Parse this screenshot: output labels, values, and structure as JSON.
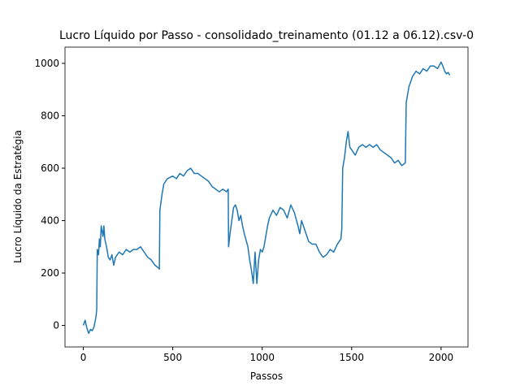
{
  "chart_data": {
    "type": "line",
    "title": "Lucro Líquido por Passo - consolidado_treinamento (01.12 a 06.12).csv-0",
    "x_label": "Passos",
    "y_label": "Lucro Líquido da Estratégia",
    "x": [
      0,
      10,
      20,
      30,
      40,
      50,
      60,
      70,
      75,
      78,
      85,
      90,
      95,
      100,
      110,
      115,
      120,
      130,
      140,
      150,
      160,
      170,
      180,
      200,
      220,
      240,
      260,
      280,
      300,
      320,
      340,
      360,
      380,
      400,
      420,
      425,
      428,
      440,
      450,
      470,
      500,
      520,
      540,
      560,
      580,
      600,
      620,
      640,
      660,
      680,
      700,
      720,
      740,
      760,
      780,
      800,
      810,
      812,
      820,
      830,
      840,
      850,
      860,
      870,
      880,
      890,
      900,
      920,
      930,
      940,
      950,
      960,
      970,
      980,
      990,
      1000,
      1010,
      1020,
      1030,
      1040,
      1060,
      1080,
      1100,
      1120,
      1140,
      1160,
      1180,
      1200,
      1210,
      1220,
      1240,
      1260,
      1280,
      1300,
      1320,
      1340,
      1360,
      1380,
      1400,
      1420,
      1440,
      1445,
      1450,
      1460,
      1470,
      1480,
      1490,
      1500,
      1520,
      1540,
      1560,
      1580,
      1600,
      1620,
      1640,
      1660,
      1680,
      1700,
      1720,
      1740,
      1760,
      1780,
      1800,
      1805,
      1820,
      1840,
      1860,
      1880,
      1900,
      1920,
      1940,
      1960,
      1980,
      2000,
      2010,
      2020,
      2030,
      2040,
      2048
    ],
    "series": [
      {
        "name": "Lucro Líquido",
        "color": "#1f77b4",
        "values": [
          0,
          20,
          -10,
          -30,
          -15,
          -20,
          -5,
          30,
          60,
          290,
          270,
          330,
          300,
          380,
          340,
          380,
          330,
          300,
          260,
          250,
          270,
          230,
          260,
          280,
          270,
          290,
          280,
          290,
          290,
          300,
          280,
          260,
          250,
          230,
          220,
          215,
          440,
          500,
          540,
          560,
          570,
          560,
          580,
          570,
          590,
          600,
          580,
          580,
          570,
          560,
          550,
          530,
          520,
          510,
          520,
          510,
          520,
          300,
          350,
          400,
          450,
          460,
          440,
          400,
          420,
          380,
          350,
          300,
          250,
          210,
          160,
          280,
          160,
          250,
          290,
          280,
          300,
          340,
          380,
          410,
          440,
          420,
          450,
          440,
          410,
          460,
          430,
          380,
          350,
          400,
          360,
          320,
          310,
          310,
          280,
          260,
          270,
          290,
          280,
          310,
          330,
          370,
          600,
          640,
          700,
          740,
          680,
          670,
          650,
          680,
          690,
          680,
          690,
          680,
          690,
          670,
          660,
          650,
          640,
          620,
          630,
          610,
          620,
          850,
          910,
          950,
          970,
          960,
          980,
          970,
          990,
          990,
          980,
          1005,
          990,
          970,
          960,
          965,
          955
        ]
      }
    ],
    "xlim": [
      -102.4,
      2150.4
    ],
    "ylim": [
      -82,
      1062
    ],
    "xticks": [
      0,
      500,
      1000,
      1500,
      2000
    ],
    "yticks": [
      0,
      200,
      400,
      600,
      800,
      1000
    ]
  }
}
